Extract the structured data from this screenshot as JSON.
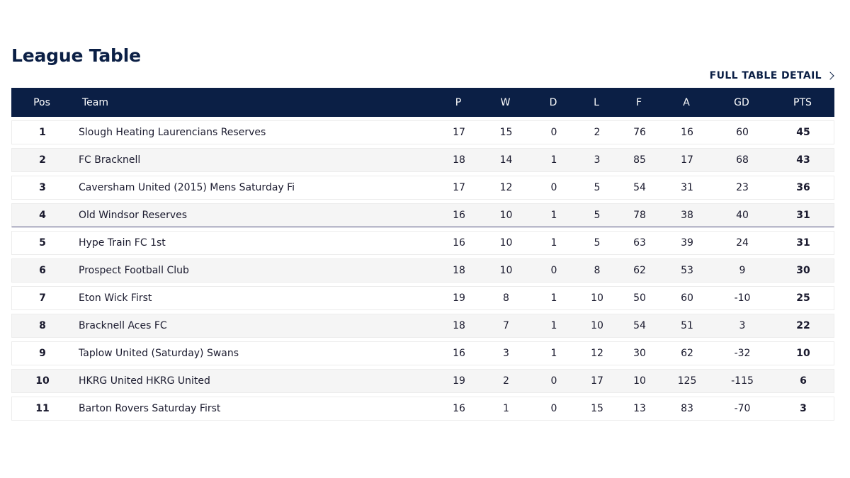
{
  "header": {
    "title": "League Table",
    "full_link": "FULL TABLE DETAIL"
  },
  "table": {
    "columns": [
      "Pos",
      "Team",
      "P",
      "W",
      "D",
      "L",
      "F",
      "A",
      "GD",
      "PTS"
    ],
    "rows": [
      {
        "pos": "1",
        "team": "Slough Heating Laurencians Reserves",
        "p": "17",
        "w": "15",
        "d": "0",
        "l": "2",
        "f": "76",
        "a": "16",
        "gd": "60",
        "pts": "45"
      },
      {
        "pos": "2",
        "team": "FC Bracknell",
        "p": "18",
        "w": "14",
        "d": "1",
        "l": "3",
        "f": "85",
        "a": "17",
        "gd": "68",
        "pts": "43"
      },
      {
        "pos": "3",
        "team": "Caversham United (2015) Mens Saturday Fi",
        "p": "17",
        "w": "12",
        "d": "0",
        "l": "5",
        "f": "54",
        "a": "31",
        "gd": "23",
        "pts": "36"
      },
      {
        "pos": "4",
        "team": "Old Windsor Reserves",
        "p": "16",
        "w": "10",
        "d": "1",
        "l": "5",
        "f": "78",
        "a": "38",
        "gd": "40",
        "pts": "31"
      },
      {
        "pos": "5",
        "team": "Hype Train FC 1st",
        "p": "16",
        "w": "10",
        "d": "1",
        "l": "5",
        "f": "63",
        "a": "39",
        "gd": "24",
        "pts": "31"
      },
      {
        "pos": "6",
        "team": "Prospect Football Club",
        "p": "18",
        "w": "10",
        "d": "0",
        "l": "8",
        "f": "62",
        "a": "53",
        "gd": "9",
        "pts": "30"
      },
      {
        "pos": "7",
        "team": "Eton Wick First",
        "p": "19",
        "w": "8",
        "d": "1",
        "l": "10",
        "f": "50",
        "a": "60",
        "gd": "-10",
        "pts": "25"
      },
      {
        "pos": "8",
        "team": "Bracknell Aces FC",
        "p": "18",
        "w": "7",
        "d": "1",
        "l": "10",
        "f": "54",
        "a": "51",
        "gd": "3",
        "pts": "22"
      },
      {
        "pos": "9",
        "team": "Taplow United (Saturday) Swans",
        "p": "16",
        "w": "3",
        "d": "1",
        "l": "12",
        "f": "30",
        "a": "62",
        "gd": "-32",
        "pts": "10"
      },
      {
        "pos": "10",
        "team": "HKRG United HKRG United",
        "p": "19",
        "w": "2",
        "d": "0",
        "l": "17",
        "f": "10",
        "a": "125",
        "gd": "-115",
        "pts": "6"
      },
      {
        "pos": "11",
        "team": "Barton Rovers Saturday First",
        "p": "16",
        "w": "1",
        "d": "0",
        "l": "15",
        "f": "13",
        "a": "83",
        "gd": "-70",
        "pts": "3"
      }
    ]
  },
  "colors": {
    "header_bg": "#0b1f45",
    "title": "#0b1f45",
    "row_alt": "#f5f5f5",
    "divider": "#4a4a7a"
  },
  "icons": {
    "full_link_icon": "chevron-right-icon"
  }
}
